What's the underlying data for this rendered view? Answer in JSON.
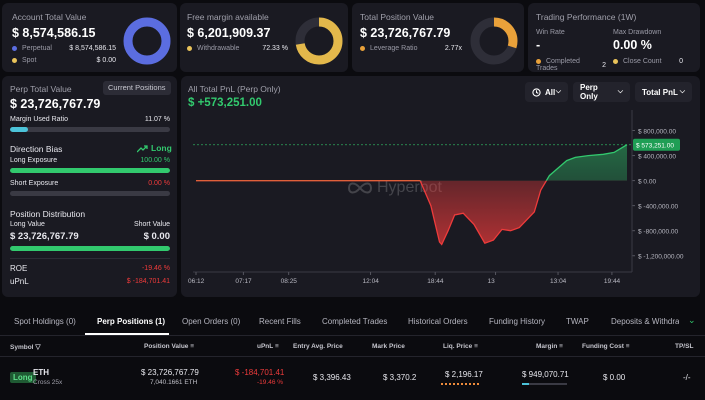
{
  "summary": {
    "account_total": {
      "label": "Account Total Value",
      "value": "$ 8,574,586.15",
      "items": [
        {
          "name": "Perpetual",
          "value": "$ 8,574,586.15",
          "color": "#5b6de0"
        },
        {
          "name": "Spot",
          "value": "$ 0.00",
          "color": "#e9c35a"
        }
      ],
      "donut_fill": 1.0,
      "donut_color": "#5b6de0"
    },
    "free_margin": {
      "label": "Free margin available",
      "value": "$ 6,201,909.37",
      "item_name": "Withdrawable",
      "item_value": "72.33 %",
      "item_color": "#e9c35a",
      "donut_fill": 0.7233,
      "donut_color": "#e3b84b"
    },
    "total_position": {
      "label": "Total Position Value",
      "value": "$ 23,726,767.79",
      "item_name": "Leverage Ratio",
      "item_value": "2.77x",
      "item_color": "#e9a13a",
      "donut_fill": 0.3,
      "donut_color": "#e9a13a"
    },
    "performance": {
      "title": "Trading Performance (1W)",
      "win_rate_label": "Win Rate",
      "win_rate_value": "-",
      "max_drawdown_label": "Max Drawdown",
      "max_drawdown_value": "0.00 %",
      "completed_trades_label": "Completed Trades",
      "completed_trades_value": "2",
      "close_count_label": "Close Count",
      "close_count_value": "0"
    }
  },
  "perp_panel": {
    "title": "Perp Total Value",
    "current_positions_button": "Current Positions",
    "value": "$ 23,726,767.79",
    "margin_used_label": "Margin Used Ratio",
    "margin_used_value": "11.07 %",
    "margin_used_fill": 0.1107,
    "direction_bias_label": "Direction Bias",
    "direction_bias_value": "Long",
    "long_exposure_label": "Long Exposure",
    "long_exposure_value": "100.00 %",
    "long_exposure_fill": 1.0,
    "short_exposure_label": "Short Exposure",
    "short_exposure_value": "0.00 %",
    "short_exposure_fill": 0.0,
    "position_distribution_label": "Position Distribution",
    "long_value_label": "Long Value",
    "short_value_label": "Short Value",
    "long_value": "$ 23,726,767.79",
    "short_value": "$ 0.00",
    "long_value_fill": 1.0,
    "roe_label": "ROE",
    "roe_value": "-19.46 %",
    "upnl_label": "uPnL",
    "upnl_value": "$ -184,701.41"
  },
  "pnl_chart": {
    "title": "All Total PnL (Perp Only)",
    "value": "$ +573,251.00",
    "filter_all": "All",
    "filter_perp": "Perp Only",
    "filter_total": "Total PnL",
    "watermark": "Hyperbot",
    "current_label": "$ 573,251.00"
  },
  "chart_data": {
    "type": "area",
    "x_ticks": [
      "06:12",
      "07:17",
      "08:25",
      "12:04",
      "18:44",
      "13",
      "13:04",
      "19:44"
    ],
    "y_ticks": [
      "$ 800,000.00",
      "$ 400,000.00",
      "$ 0.00",
      "$ -400,000.00",
      "$ -800,000.00",
      "$ -1,200,000.00"
    ],
    "ylim": [
      -1300000,
      1000000
    ],
    "reference_line": 573251,
    "series": [
      {
        "x": [
          0.0,
          0.3,
          0.44,
          0.45,
          0.47,
          0.48,
          0.52,
          0.545,
          0.565,
          0.57,
          0.585,
          0.6,
          0.62,
          0.645,
          0.67,
          0.69,
          0.71,
          0.73,
          0.75,
          0.785,
          0.8,
          0.82,
          0.84,
          0.86,
          0.88,
          0.91,
          0.945,
          0.97,
          1.0
        ],
        "y": [
          0,
          0,
          0,
          0,
          0,
          0,
          0,
          -400000,
          -980000,
          -1020000,
          -800000,
          -550000,
          -520000,
          -700000,
          -1000000,
          -950000,
          -780000,
          -800000,
          -750000,
          -500000,
          -150000,
          80000,
          200000,
          320000,
          370000,
          400000,
          420000,
          450000,
          573251
        ]
      }
    ]
  },
  "tabs": [
    {
      "label": "Spot Holdings (0)",
      "active": false
    },
    {
      "label": "Perp Positions (1)",
      "active": true
    },
    {
      "label": "Open Orders (0)",
      "active": false
    },
    {
      "label": "Recent Fills",
      "active": false
    },
    {
      "label": "Completed Trades",
      "active": false
    },
    {
      "label": "Historical Orders",
      "active": false
    },
    {
      "label": "Funding History",
      "active": false
    },
    {
      "label": "TWAP",
      "active": false
    },
    {
      "label": "Deposits & Withdrav",
      "active": false
    }
  ],
  "table": {
    "headers": {
      "symbol": "Symbol",
      "position_value": "Position Value",
      "upnl": "uPnL",
      "entry_price": "Entry Avg. Price",
      "mark_price": "Mark Price",
      "liq_price": "Liq. Price",
      "margin": "Margin",
      "funding_cost": "Funding Cost",
      "tpsl": "TP/SL"
    },
    "rows": [
      {
        "side": "Long",
        "coin": "ETH",
        "mode": "Cross 25x",
        "position_value": "$ 23,726,767.79",
        "position_size": "7,040.1661 ETH",
        "upnl": "$ -184,701.41",
        "upnl_pct": "-19.46 %",
        "entry_price": "$ 3,396.43",
        "mark_price": "$ 3,370.2",
        "liq_price": "$ 2,196.17",
        "margin": "$ 949,070.71",
        "funding_cost": "$ 0.00",
        "tpsl": "-/-"
      }
    ]
  }
}
